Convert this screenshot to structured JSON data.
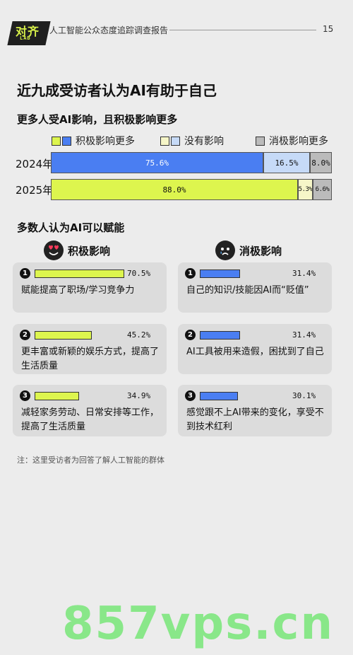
{
  "header": {
    "logo_main": "对齐",
    "logo_sub": "LAB",
    "report_title": "人工智能公众态度追踪调查报告",
    "page_number": "15"
  },
  "main_title": "近九成受访者认为AI有助于自己",
  "sub_title": "更多人受AI影响，且积极影响更多",
  "section2_title": "多数人认为AI可以赋能",
  "columns": {
    "positive": "积极影响",
    "negative": "消极影响"
  },
  "note": "注：这里受访者为回答了解人工智能的群体",
  "watermark": "857vps.cn",
  "colors": {
    "blue": "#4a7ef2",
    "lime": "#ddf54e",
    "light_blue": "#c6daf7",
    "pale_yellow": "#f6f6c8",
    "gray": "#bbbbbb"
  },
  "chart_data": [
    {
      "type": "bar",
      "orientation": "horizontal",
      "stacked": true,
      "title": "更多人受AI影响，且积极影响更多",
      "categories": [
        "2024年",
        "2025年"
      ],
      "series": [
        {
          "name": "积极影响更多",
          "values": [
            75.6,
            88.0
          ],
          "labels": [
            "75.6%",
            "88.0%"
          ]
        },
        {
          "name": "没有影响",
          "values": [
            16.5,
            5.3
          ],
          "labels": [
            "16.5%",
            "5.3%"
          ]
        },
        {
          "name": "消极影响更多",
          "values": [
            8.0,
            6.6
          ],
          "labels": [
            "8.0%",
            "6.6%"
          ]
        }
      ],
      "xlim": [
        0,
        100
      ],
      "legend": "top"
    },
    {
      "type": "bar",
      "title": "多数人认为AI可以赋能",
      "groups": [
        {
          "name": "积极影响",
          "items": [
            {
              "rank": "1",
              "label": "赋能提高了职场/学习竞争力",
              "value": 70.5,
              "display": "70.5%"
            },
            {
              "rank": "2",
              "label": "更丰富或新颖的娱乐方式，提高了生活质量",
              "value": 45.2,
              "display": "45.2%"
            },
            {
              "rank": "3",
              "label": "减轻家务劳动、日常安排等工作，提高了生活质量",
              "value": 34.9,
              "display": "34.9%"
            }
          ]
        },
        {
          "name": "消极影响",
          "items": [
            {
              "rank": "1",
              "label": "自己的知识/技能因AI而“贬值”",
              "value": 31.4,
              "display": "31.4%"
            },
            {
              "rank": "2",
              "label": "AI工具被用来造假，困扰到了自己",
              "value": 31.4,
              "display": "31.4%"
            },
            {
              "rank": "3",
              "label": "感觉跟不上AI带来的变化，享受不到技术红利",
              "value": 30.1,
              "display": "30.1%"
            }
          ]
        }
      ]
    }
  ]
}
